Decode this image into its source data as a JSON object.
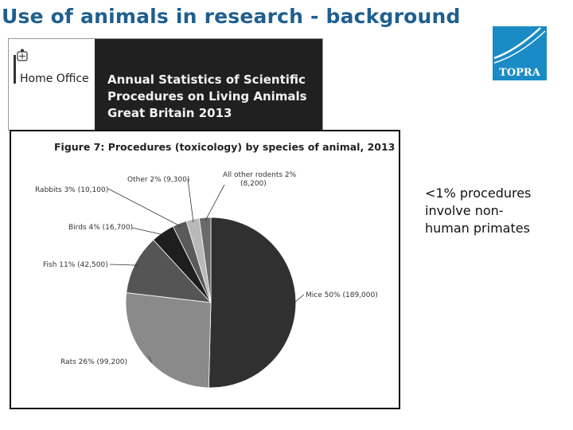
{
  "slide": {
    "title": "Use of animals in research - background"
  },
  "logo": {
    "text": "TOPRA",
    "color": "#1a8bc4"
  },
  "report": {
    "department": "Home Office",
    "title_lines": [
      "Annual Statistics of Scientific",
      "Procedures on Living Animals",
      "Great Britain 2013"
    ]
  },
  "note": {
    "lines": [
      "<1% procedures",
      "involve non-",
      "human primates"
    ]
  },
  "chart_data": {
    "type": "pie",
    "title": "Figure 7: Procedures (toxicology) by species of animal, 2013",
    "start": "12 o'clock, clockwise",
    "slices": [
      {
        "name": "Mice",
        "label": "Mice 50% (189,000)",
        "value": 189000,
        "percent": 50,
        "color": "#303030"
      },
      {
        "name": "Rats",
        "label": "Rats 26% (99,200)",
        "value": 99200,
        "percent": 26,
        "color": "#8a8a8a"
      },
      {
        "name": "Fish",
        "label": "Fish 11% (42,500)",
        "value": 42500,
        "percent": 11,
        "color": "#555555"
      },
      {
        "name": "Birds",
        "label": "Birds 4% (16,700)",
        "value": 16700,
        "percent": 4,
        "color": "#1e1e1e"
      },
      {
        "name": "Rabbits",
        "label": "Rabbits 3% (10,100)",
        "value": 10100,
        "percent": 3,
        "color": "#5a5a5a"
      },
      {
        "name": "Other",
        "label": "Other 2% (9,300)",
        "value": 9300,
        "percent": 2,
        "color": "#b8b8b8"
      },
      {
        "name": "All other rodents",
        "label_lines": [
          "All other rodents 2%",
          "(8,200)"
        ],
        "value": 8200,
        "percent": 2,
        "color": "#6a6a6a"
      }
    ]
  }
}
